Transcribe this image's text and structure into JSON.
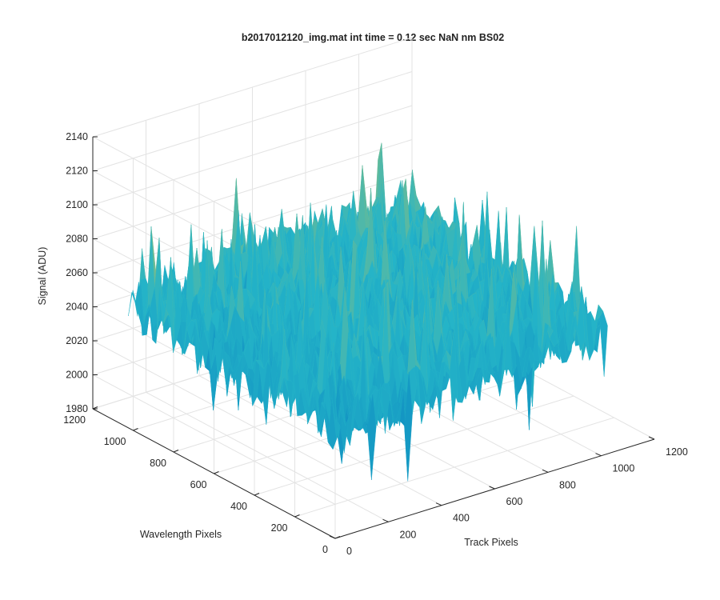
{
  "chart_data": {
    "type": "surface",
    "title": "b2017012120_img.mat int time = 0.12 sec  NaN nm BS02",
    "xlabel": "Track Pixels",
    "ylabel": "Wavelength Pixels",
    "zlabel": "Signal (ADU)",
    "xlim": [
      0,
      1200
    ],
    "ylim": [
      0,
      1200
    ],
    "zlim": [
      1980,
      2140
    ],
    "xticks": [
      "0",
      "200",
      "400",
      "600",
      "800",
      "1000",
      "1200"
    ],
    "yticks": [
      "0",
      "200",
      "400",
      "600",
      "800",
      "1000",
      "1200"
    ],
    "zticks": [
      "1980",
      "2000",
      "2020",
      "2040",
      "2060",
      "2080",
      "2100",
      "2120",
      "2140"
    ],
    "grid": true,
    "colormap": "parula",
    "surface_extent": {
      "x": [
        0,
        1024
      ],
      "y": [
        0,
        1024
      ]
    },
    "signal_summary": {
      "baseline": 2045,
      "typical_min": 2000,
      "typical_max": 2090,
      "peak": 2140,
      "peak_location": "far corner (high Track Pixels, high Wavelength Pixels)"
    },
    "colors": {
      "low": "#0072bd",
      "mid": "#24b4c8",
      "high": "#e6c83c"
    }
  }
}
